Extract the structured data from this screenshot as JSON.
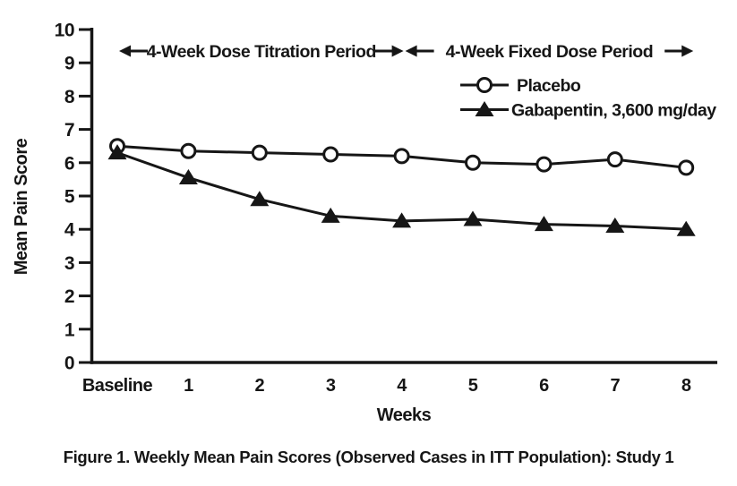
{
  "page": {
    "background": "#ffffff"
  },
  "figure": {
    "caption": "Figure 1. Weekly Mean Pain Scores (Observed Cases in ITT Population): Study 1"
  },
  "colors": {
    "ink": "#161616",
    "marker_fill": "#ffffff"
  },
  "chart_data": {
    "type": "line",
    "title": "",
    "xlabel": "Weeks",
    "ylabel": "Mean Pain Score",
    "categories": [
      "Baseline",
      "1",
      "2",
      "3",
      "4",
      "5",
      "6",
      "7",
      "8"
    ],
    "x_values": [
      0,
      1,
      2,
      3,
      4,
      5,
      6,
      7,
      8
    ],
    "ylim": [
      0,
      10
    ],
    "yticks": [
      0,
      1,
      2,
      3,
      4,
      5,
      6,
      7,
      8,
      9,
      10
    ],
    "grid": false,
    "legend_position": "inside-upper-right",
    "series": [
      {
        "name": "Placebo",
        "marker": "open-circle",
        "values": [
          6.5,
          6.35,
          6.3,
          6.25,
          6.2,
          6.0,
          5.95,
          6.1,
          5.85
        ]
      },
      {
        "name": "Gabapentin, 3,600 mg/day",
        "marker": "filled-triangle",
        "values": [
          6.3,
          5.55,
          4.9,
          4.4,
          4.25,
          4.3,
          4.15,
          4.1,
          4.0
        ]
      }
    ],
    "annotations": [
      {
        "label": "4-Week Dose Titration Period",
        "arrow_style": "double-headed",
        "x_span": [
          0,
          4
        ]
      },
      {
        "label": "4-Week Fixed Dose Period",
        "arrow_style": "double-headed",
        "x_span": [
          4,
          8
        ]
      }
    ]
  }
}
